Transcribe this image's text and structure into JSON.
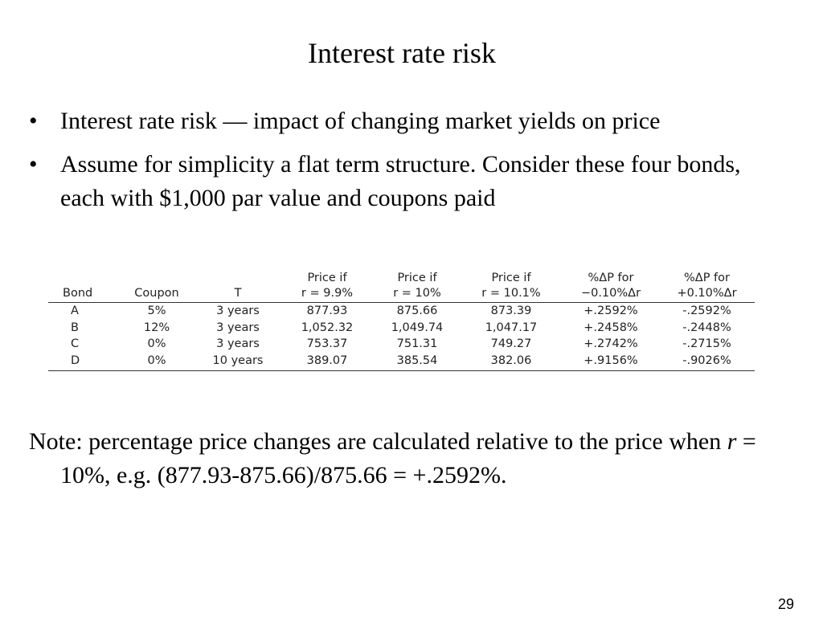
{
  "slide": {
    "title": "Interest rate risk",
    "page_number": "29"
  },
  "bullets": [
    {
      "marker": "•",
      "text": "Interest rate risk — impact of changing market yields on price"
    },
    {
      "marker": "•",
      "text": "Assume for simplicity a flat term structure. Consider these four bonds, each with $1,000 par value and coupons paid"
    }
  ],
  "table": {
    "header_top": [
      "",
      "",
      "",
      "Price if",
      "Price if",
      "Price if",
      "%ΔP for",
      "%ΔP for"
    ],
    "header_bottom": [
      "Bond",
      "Coupon",
      "T",
      "r = 9.9%",
      "r = 10%",
      "r = 10.1%",
      "−0.10%Δr",
      "+0.10%Δr"
    ],
    "rows": [
      [
        "A",
        "5%",
        "3 years",
        "877.93",
        "875.66",
        "873.39",
        "+.2592%",
        "-.2592%"
      ],
      [
        "B",
        "12%",
        "3 years",
        "1,052.32",
        "1,049.74",
        "1,047.17",
        "+.2458%",
        "-.2448%"
      ],
      [
        "C",
        "0%",
        "3 years",
        "753.37",
        "751.31",
        "749.27",
        "+.2742%",
        "-.2715%"
      ],
      [
        "D",
        "0%",
        "10 years",
        "389.07",
        "385.54",
        "382.06",
        "+.9156%",
        "-.9026%"
      ]
    ]
  },
  "note": {
    "before": "Note: percentage price changes are calculated relative to the price when ",
    "variable": "r",
    "after": " = 10%, e.g. (877.93-875.66)/875.66 = +.2592%."
  }
}
